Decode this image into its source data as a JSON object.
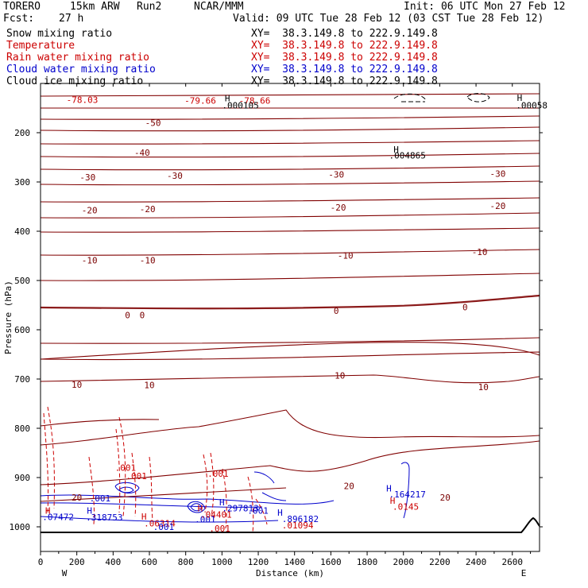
{
  "header": {
    "model": "TORERO",
    "resolution": "15km ARW",
    "run": "Run2",
    "center": "NCAR/MMM",
    "init": "Init: 06 UTC Mon 27 Feb 12",
    "fcst_label": "Fcst:",
    "fcst_value": "27 h",
    "valid": "Valid: 09 UTC Tue 28 Feb 12 (03 CST Tue 28 Feb 12)"
  },
  "fields": [
    {
      "name": "Snow mixing ratio",
      "xy": "XY=  38.3.149.8 to 222.9.149.8",
      "color": "#000000"
    },
    {
      "name": "Temperature",
      "xy": "XY=  38.3.149.8 to 222.9.149.8",
      "color": "#cc0000"
    },
    {
      "name": "Rain water mixing ratio",
      "xy": "XY=  38.3.149.8 to 222.9.149.8",
      "color": "#cc0000"
    },
    {
      "name": "Cloud water mixing ratio",
      "xy": "XY=  38.3.149.8 to 222.9.149.8",
      "color": "#0000cc"
    },
    {
      "name": "Cloud ice mixing ratio",
      "xy": "XY=  38.3.149.8 to 222.9.149.8",
      "color": "#000000"
    }
  ],
  "chart_data": {
    "type": "line",
    "xlabel": "Distance (km)",
    "ylabel": "Pressure (hPa)",
    "xlim": [
      0,
      2750
    ],
    "ylim": [
      1050,
      100
    ],
    "x_ticks": [
      0,
      200,
      400,
      600,
      800,
      1000,
      1200,
      1400,
      1600,
      1800,
      2000,
      2200,
      2400,
      2600
    ],
    "y_ticks": [
      200,
      300,
      400,
      500,
      600,
      700,
      800,
      900,
      1000
    ],
    "x_end_labels": {
      "left": "W",
      "right": "E"
    },
    "temperature_colors": {
      "isotherm": "#800000",
      "zero": "#8b1a1a"
    },
    "temperature_labels": [
      {
        "text": "-50",
        "x": 620,
        "p": 180
      },
      {
        "text": "-40",
        "x": 560,
        "p": 240
      },
      {
        "text": "-30",
        "x": 260,
        "p": 290
      },
      {
        "text": "-30",
        "x": 740,
        "p": 287
      },
      {
        "text": "-30",
        "x": 1630,
        "p": 285
      },
      {
        "text": "-30",
        "x": 2520,
        "p": 283
      },
      {
        "text": "-20",
        "x": 270,
        "p": 357
      },
      {
        "text": "-20",
        "x": 590,
        "p": 355
      },
      {
        "text": "-20",
        "x": 1640,
        "p": 352
      },
      {
        "text": "-20",
        "x": 2520,
        "p": 348
      },
      {
        "text": "-10",
        "x": 270,
        "p": 459
      },
      {
        "text": "-10",
        "x": 590,
        "p": 459
      },
      {
        "text": "-10",
        "x": 1680,
        "p": 449
      },
      {
        "text": "-10",
        "x": 2420,
        "p": 442
      },
      {
        "text": "0",
        "x": 480,
        "p": 570
      },
      {
        "text": "0",
        "x": 560,
        "p": 570
      },
      {
        "text": "0",
        "x": 1630,
        "p": 561
      },
      {
        "text": "0",
        "x": 2340,
        "p": 554
      },
      {
        "text": "10",
        "x": 200,
        "p": 711
      },
      {
        "text": "10",
        "x": 600,
        "p": 712
      },
      {
        "text": "10",
        "x": 1650,
        "p": 693
      },
      {
        "text": "10",
        "x": 2440,
        "p": 716
      },
      {
        "text": "20",
        "x": 200,
        "p": 940
      },
      {
        "text": "20",
        "x": 1700,
        "p": 917
      },
      {
        "text": "20",
        "x": 2230,
        "p": 940
      }
    ],
    "top_labels": [
      {
        "text": "-78.03",
        "x": 230,
        "p": 133,
        "color": "#cc0000"
      },
      {
        "text": "-79.66",
        "x": 880,
        "p": 135,
        "color": "#cc0000"
      },
      {
        "text": "-78.66",
        "x": 1180,
        "p": 135,
        "color": "#cc0000"
      }
    ],
    "high_markers": [
      {
        "text": "H",
        "x": 1030,
        "p": 130,
        "color": "#000000"
      },
      {
        "text": "H",
        "x": 1960,
        "p": 234,
        "color": "#000000"
      },
      {
        "text": "H",
        "x": 2640,
        "p": 129,
        "color": "#000000"
      },
      {
        "text": "H",
        "x": 40,
        "p": 967,
        "color": "#cc0000"
      },
      {
        "text": "H",
        "x": 270,
        "p": 967,
        "color": "#0000cc"
      },
      {
        "text": "H",
        "x": 570,
        "p": 979,
        "color": "#cc0000"
      },
      {
        "text": "H",
        "x": 880,
        "p": 962,
        "color": "#cc0000"
      },
      {
        "text": "H",
        "x": 1000,
        "p": 950,
        "color": "#0000cc"
      },
      {
        "text": "H",
        "x": 1320,
        "p": 971,
        "color": "#0000cc"
      },
      {
        "text": "H",
        "x": 1920,
        "p": 922,
        "color": "#0000cc"
      },
      {
        "text": "H",
        "x": 1940,
        "p": 947,
        "color": "#cc0000"
      }
    ],
    "value_labels": [
      {
        "text": ".000105",
        "x": 1000,
        "p": 144,
        "color": "#000000"
      },
      {
        "text": ".004865",
        "x": 1920,
        "p": 246,
        "color": "#000000"
      },
      {
        "text": ".00058",
        "x": 2620,
        "p": 144,
        "color": "#000000"
      },
      {
        "text": ".07472",
        "x": 10,
        "p": 980,
        "color": "#0000cc"
      },
      {
        "text": ".318753",
        "x": 250,
        "p": 981,
        "color": "#0000cc"
      },
      {
        "text": ".001",
        "x": 270,
        "p": 942,
        "color": "#0000cc"
      },
      {
        "text": ".001",
        "x": 470,
        "p": 897,
        "color": "#cc0000"
      },
      {
        "text": ".001",
        "x": 850,
        "p": 985,
        "color": "#0000cc"
      },
      {
        "text": ".001",
        "x": 930,
        "p": 1003,
        "color": "#cc0000"
      },
      {
        "text": ".001",
        "x": 410,
        "p": 880,
        "color": "#cc0000"
      },
      {
        "text": ".06314",
        "x": 570,
        "p": 993,
        "color": "#cc0000"
      },
      {
        "text": ".001",
        "x": 620,
        "p": 1000,
        "color": "#0000cc"
      },
      {
        "text": ".04401",
        "x": 880,
        "p": 975,
        "color": "#cc0000"
      },
      {
        "text": ".001",
        "x": 920,
        "p": 892,
        "color": "#cc0000"
      },
      {
        "text": ".297813",
        "x": 1000,
        "p": 962,
        "color": "#0000cc"
      },
      {
        "text": ".001",
        "x": 1140,
        "p": 967,
        "color": "#0000cc"
      },
      {
        "text": ".896182",
        "x": 1330,
        "p": 984,
        "color": "#0000cc"
      },
      {
        "text": ".01094",
        "x": 1330,
        "p": 997,
        "color": "#cc0000"
      },
      {
        "text": ".164217",
        "x": 1920,
        "p": 934,
        "color": "#0000cc"
      },
      {
        "text": ".0145",
        "x": 1940,
        "p": 959,
        "color": "#cc0000"
      }
    ]
  }
}
